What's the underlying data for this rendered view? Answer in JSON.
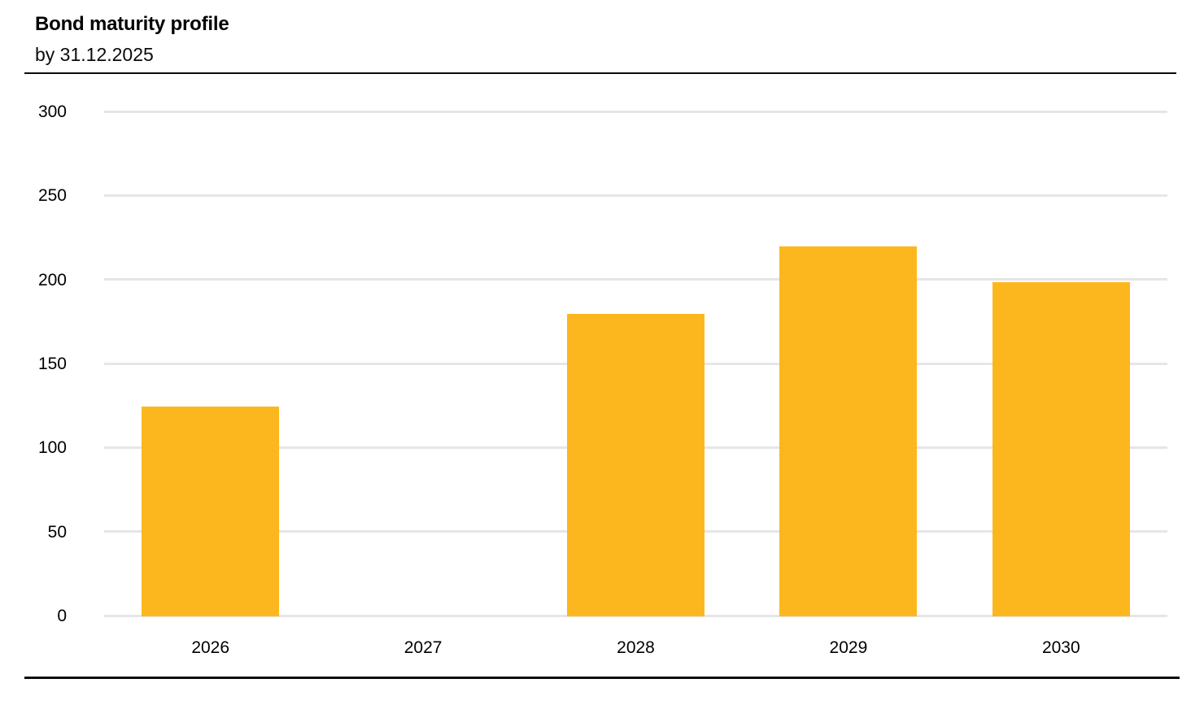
{
  "header": {
    "title": "Bond maturity profile",
    "subtitle": "by 31.12.2025"
  },
  "chart_data": {
    "type": "bar",
    "title": "Bond maturity profile",
    "subtitle": "by 31.12.2025",
    "categories": [
      "2026",
      "2027",
      "2028",
      "2029",
      "2030"
    ],
    "values": [
      125,
      0,
      180,
      220,
      199
    ],
    "xlabel": "",
    "ylabel": "",
    "ylim": [
      0,
      300
    ],
    "y_ticks": [
      0,
      50,
      100,
      150,
      200,
      250,
      300
    ],
    "grid": "horizontal-only",
    "legend": "none",
    "bar_color": "#FDB71E",
    "gridline_color": "#E6E6E6",
    "rule_color": "#0A0A0A"
  }
}
